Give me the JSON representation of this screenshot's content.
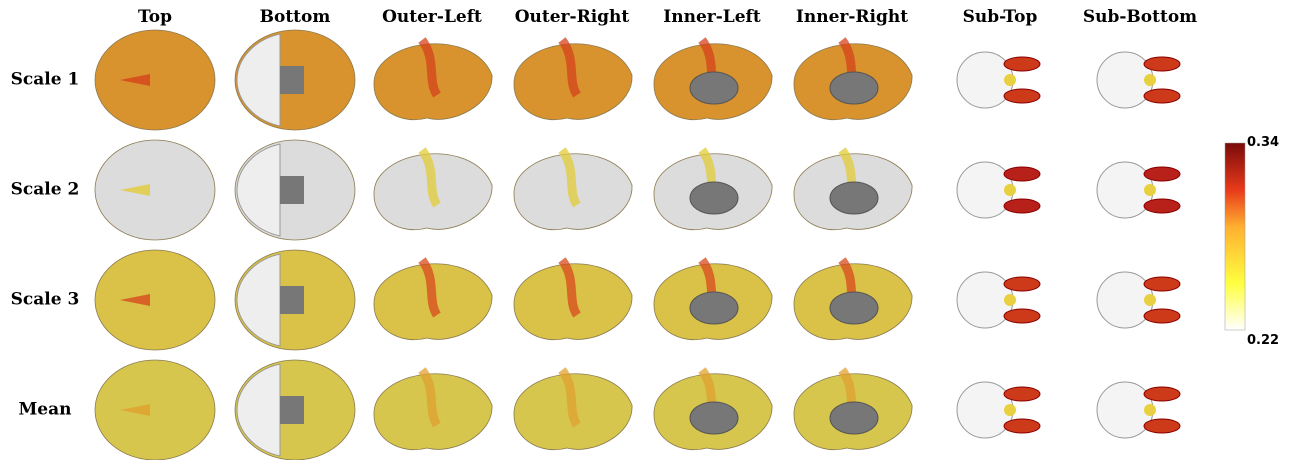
{
  "columns": [
    "Top",
    "Bottom",
    "Outer-Left",
    "Outer-Right",
    "Inner-Left",
    "Inner-Right",
    "Sub-Top",
    "Sub-Bottom"
  ],
  "rows": [
    "Scale 1",
    "Scale 2",
    "Scale 3",
    "Mean"
  ],
  "colorbar": {
    "max": 0.34,
    "min": 0.22
  }
}
